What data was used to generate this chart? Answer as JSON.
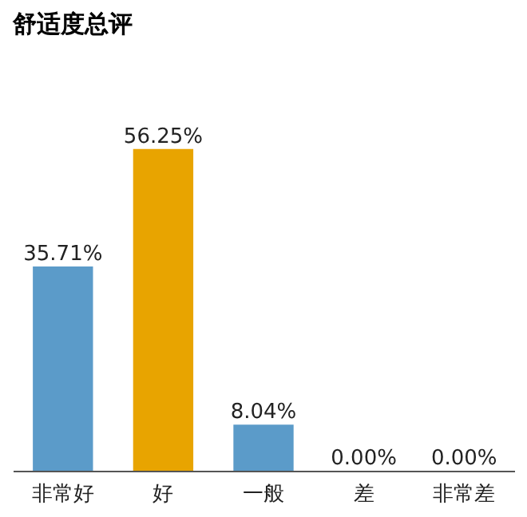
{
  "chart_data": {
    "type": "bar",
    "title": "舒适度总评",
    "categories": [
      "非常好",
      "好",
      "一般",
      "差",
      "非常差"
    ],
    "values": [
      35.71,
      56.25,
      8.04,
      0,
      0
    ],
    "colors": [
      "#5b9bc9",
      "#e8a400",
      "#5b9bc9",
      "#5b9bc9",
      "#5b9bc9"
    ],
    "value_labels": [
      "35.71%",
      "56.25%",
      "8.04%",
      "0.00%",
      "0.00%"
    ]
  }
}
